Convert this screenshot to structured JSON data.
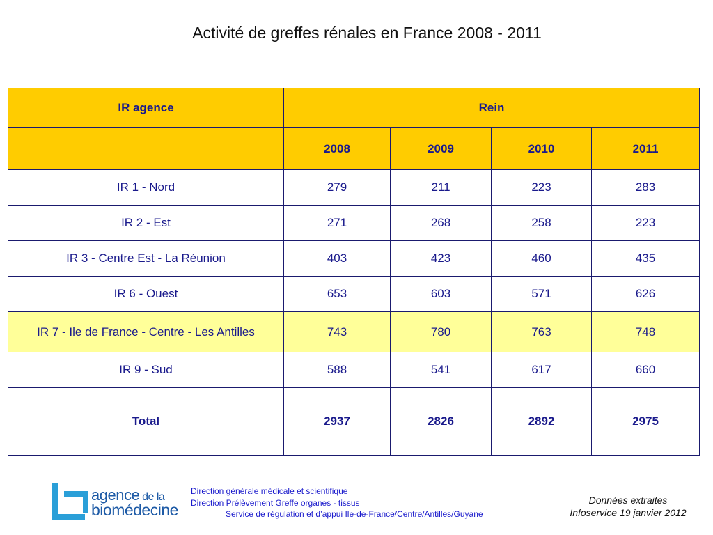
{
  "title": "Activité de greffes rénales en France 2008 - 2011",
  "table": {
    "corner_header": "IR agence",
    "group_header": "Rein",
    "years": [
      "2008",
      "2009",
      "2010",
      "2011"
    ],
    "rows": [
      {
        "label": "IR 1 - Nord",
        "values": [
          "279",
          "211",
          "223",
          "283"
        ]
      },
      {
        "label": "IR 2 - Est",
        "values": [
          "271",
          "268",
          "258",
          "223"
        ]
      },
      {
        "label": "IR 3 - Centre Est - La Réunion",
        "values": [
          "403",
          "423",
          "460",
          "435"
        ]
      },
      {
        "label": "IR 6 - Ouest",
        "values": [
          "653",
          "603",
          "571",
          "626"
        ]
      },
      {
        "label": "IR 7 - Ile de France - Centre - Les Antilles",
        "values": [
          "743",
          "780",
          "763",
          "748"
        ],
        "highlighted": true
      },
      {
        "label": "IR 9 - Sud",
        "values": [
          "588",
          "541",
          "617",
          "660"
        ]
      }
    ],
    "total_label": "Total",
    "totals": [
      "2937",
      "2826",
      "2892",
      "2975"
    ]
  },
  "logo": {
    "line1_main": "agence",
    "line1_small": " de la",
    "line2": "biomédecine"
  },
  "footer": {
    "line1": "Direction générale médicale et scientifique",
    "line2": "Direction Prélèvement Greffe organes - tissus",
    "line3": "Service de régulation et d’appui Ile-de-France/Centre/Antilles/Guyane",
    "source_line1": "Données extraites",
    "source_line2": "Infoservice 19 janvier 2012"
  },
  "colors": {
    "header_yellow": "#ffcc00",
    "highlight_row": "#ffff99",
    "text_navy": "#1a1a8c",
    "logo_blue": "#1d5aa6"
  }
}
